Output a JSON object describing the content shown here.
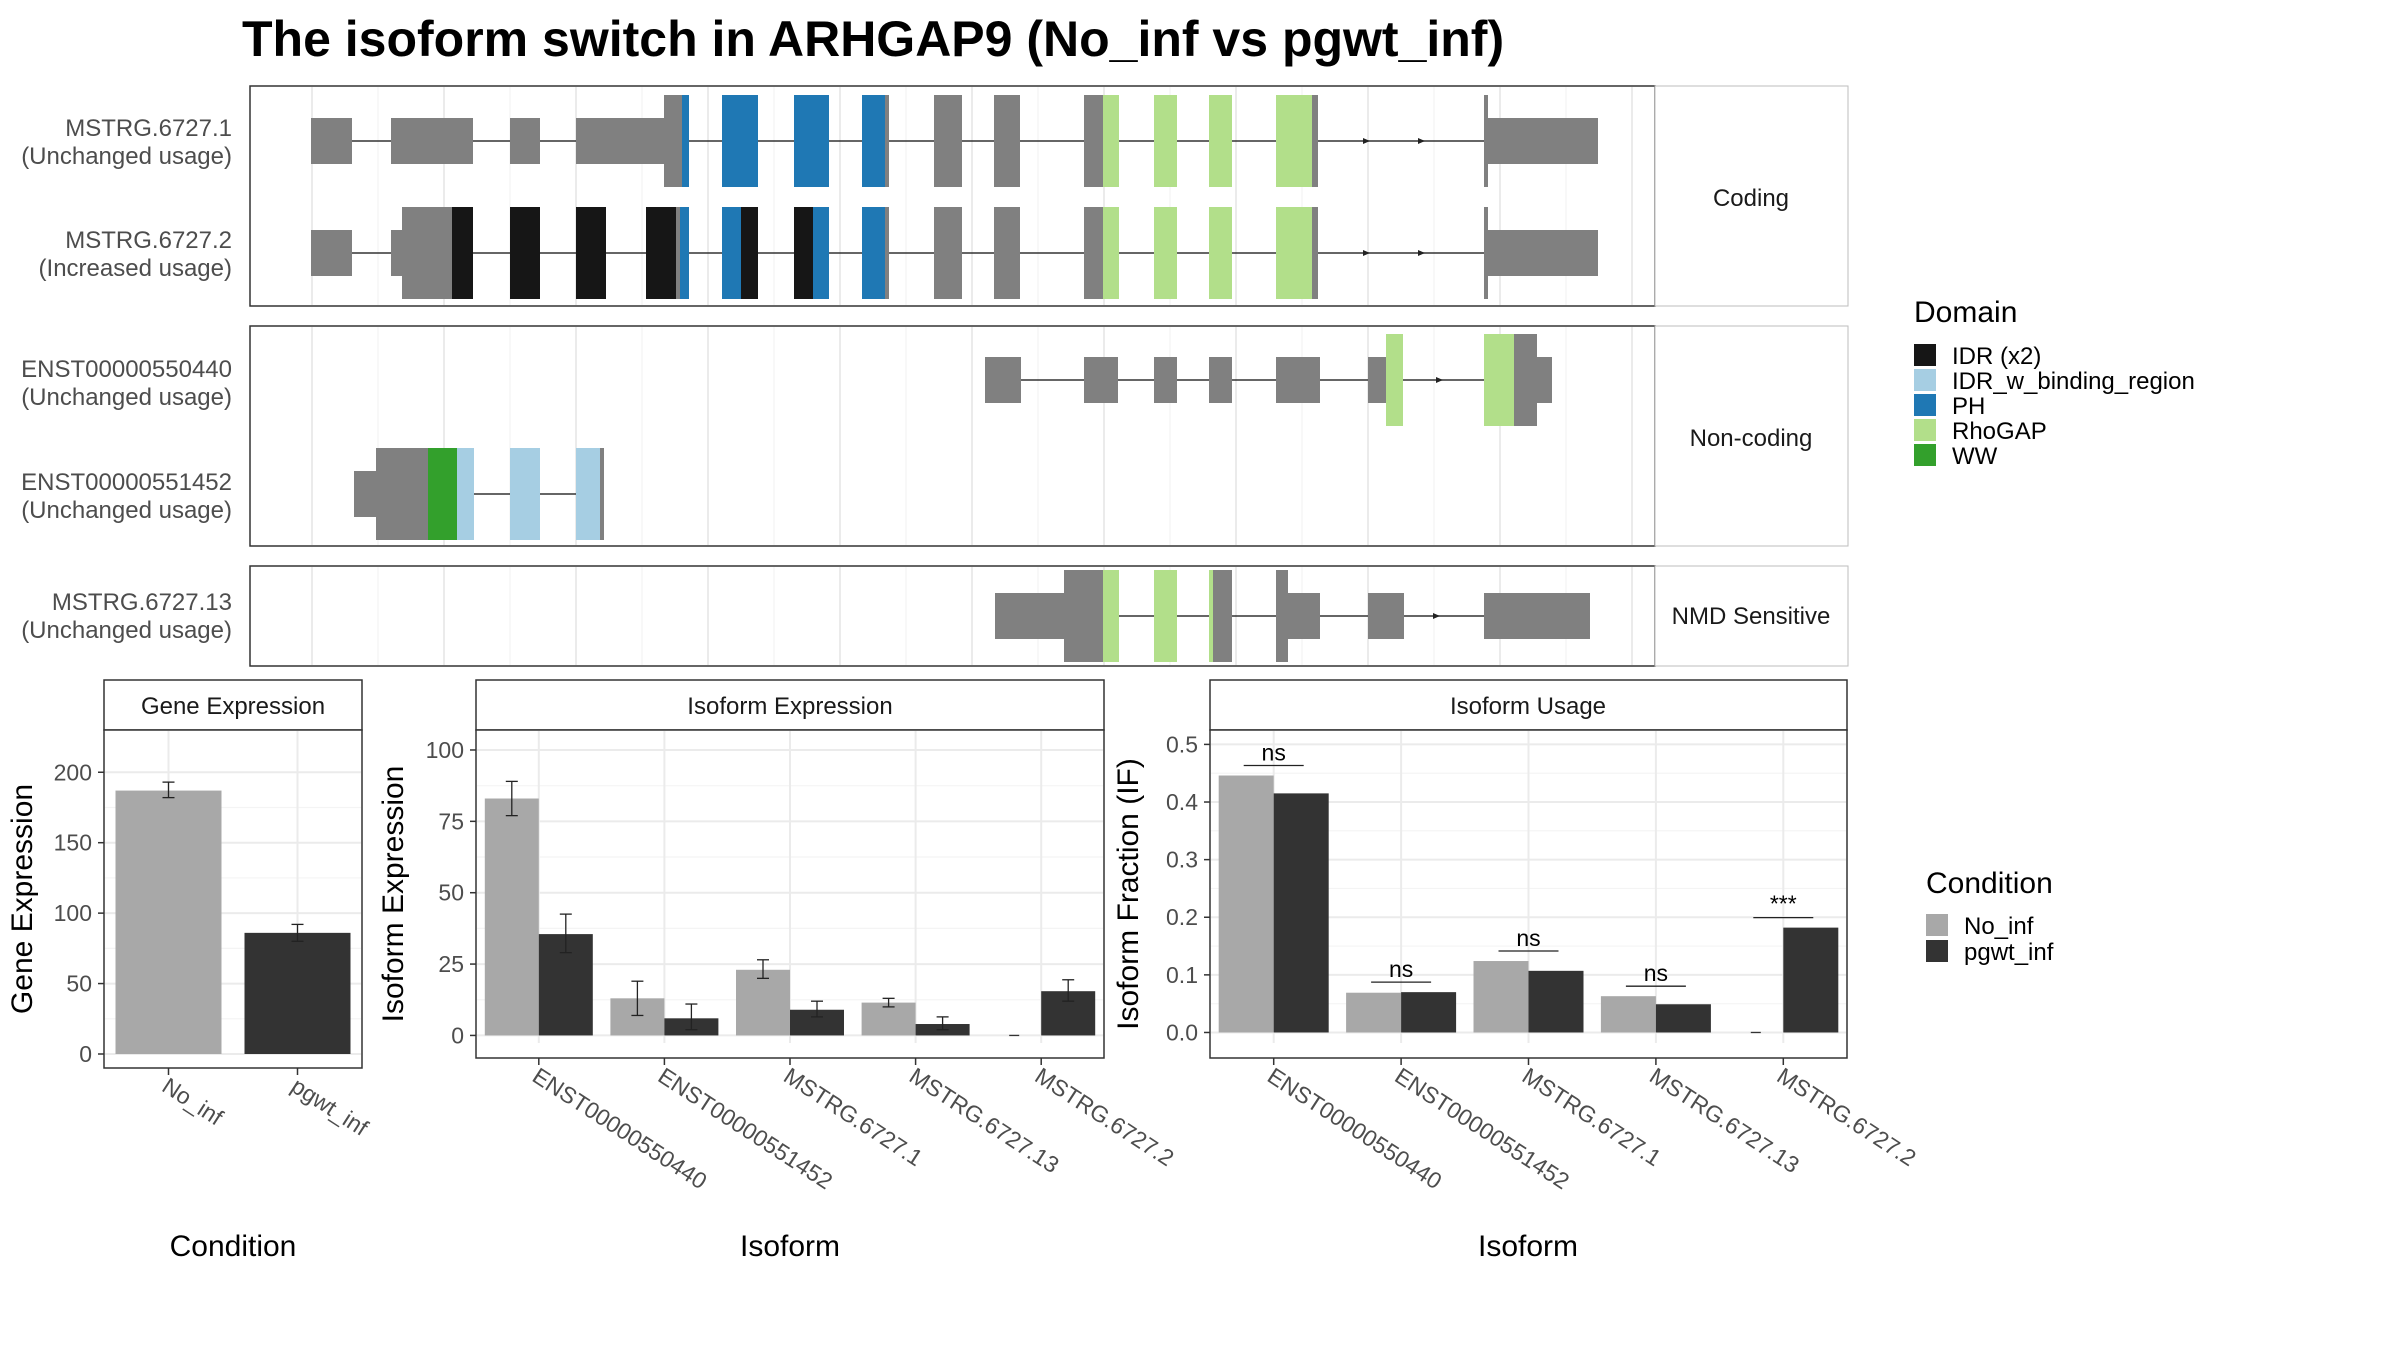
{
  "title": "The isoform switch in ARHGAP9 (No_inf vs pgwt_inf)",
  "colors": {
    "exon": "#808080",
    "IDR (x2)": "#161616",
    "IDR_w_binding_region": "#a6cee3",
    "PH": "#1f78b4",
    "RhoGAP": "#b2df8a",
    "WW": "#33a02c",
    "No_inf": "#a8a8a8",
    "pgwt_inf": "#333333",
    "grid": "#ebebeb",
    "strip": "#ffffff"
  },
  "structure": {
    "groups": [
      {
        "label": "Coding",
        "isoforms": [
          {
            "name": "MSTRG.6727.1",
            "usage": "(Unchanged usage)"
          },
          {
            "name": "MSTRG.6727.2",
            "usage": "(Increased usage)"
          }
        ]
      },
      {
        "label": "Non-coding",
        "isoforms": [
          {
            "name": "ENST00000550440",
            "usage": "(Unchanged usage)"
          },
          {
            "name": "ENST00000551452",
            "usage": "(Unchanged usage)"
          }
        ]
      },
      {
        "label": "NMD Sensitive",
        "isoforms": [
          {
            "name": "MSTRG.6727.13",
            "usage": "(Unchanged usage)"
          }
        ]
      }
    ],
    "domain_legend": {
      "title": "Domain",
      "items": [
        "IDR (x2)",
        "IDR_w_binding_region",
        "PH",
        "RhoGAP",
        "WW"
      ]
    }
  },
  "condition_legend": {
    "title": "Condition",
    "items": [
      "No_inf",
      "pgwt_inf"
    ]
  },
  "chart_data": [
    {
      "type": "bar",
      "title": "Gene Expression",
      "xlabel": "Condition",
      "ylabel": "Gene Expression",
      "categories": [
        "No_inf",
        "pgwt_inf"
      ],
      "values": [
        187,
        86
      ],
      "errors": [
        [
          182,
          193
        ],
        [
          80,
          92
        ]
      ],
      "yticks": [
        0,
        50,
        100,
        150,
        200
      ],
      "ylim": [
        0,
        230
      ]
    },
    {
      "type": "bar",
      "title": "Isoform Expression",
      "xlabel": "Isoform",
      "ylabel": "Isoform Expression",
      "categories": [
        "ENST00000550440",
        "ENST00000551452",
        "MSTRG.6727.1",
        "MSTRG.6727.13",
        "MSTRG.6727.2"
      ],
      "series": [
        {
          "name": "No_inf",
          "values": [
            83,
            13,
            23,
            11.5,
            0
          ],
          "errors": [
            [
              77,
              89
            ],
            [
              7,
              19
            ],
            [
              20,
              26.5
            ],
            [
              10,
              13
            ],
            [
              0,
              0
            ]
          ]
        },
        {
          "name": "pgwt_inf",
          "values": [
            35.5,
            6,
            9,
            4,
            15.5
          ],
          "errors": [
            [
              29,
              42.5
            ],
            [
              2,
              11
            ],
            [
              6.5,
              12
            ],
            [
              2,
              6.5
            ],
            [
              12,
              19.5
            ]
          ]
        }
      ],
      "yticks": [
        0,
        25,
        50,
        75,
        100
      ],
      "ylim": [
        -3,
        107
      ]
    },
    {
      "type": "bar",
      "title": "Isoform Usage",
      "xlabel": "Isoform",
      "ylabel": "Isoform Fraction (IF)",
      "categories": [
        "ENST00000550440",
        "ENST00000551452",
        "MSTRG.6727.1",
        "MSTRG.6727.13",
        "MSTRG.6727.2"
      ],
      "series": [
        {
          "name": "No_inf",
          "values": [
            0.446,
            0.069,
            0.124,
            0.063,
            0.0
          ]
        },
        {
          "name": "pgwt_inf",
          "values": [
            0.415,
            0.07,
            0.107,
            0.049,
            0.182
          ]
        }
      ],
      "significance": [
        "ns",
        "ns",
        "ns",
        "ns",
        "***"
      ],
      "yticks": [
        0.0,
        0.1,
        0.2,
        0.3,
        0.4,
        0.5
      ],
      "ylim": [
        -0.02,
        0.525
      ]
    }
  ]
}
